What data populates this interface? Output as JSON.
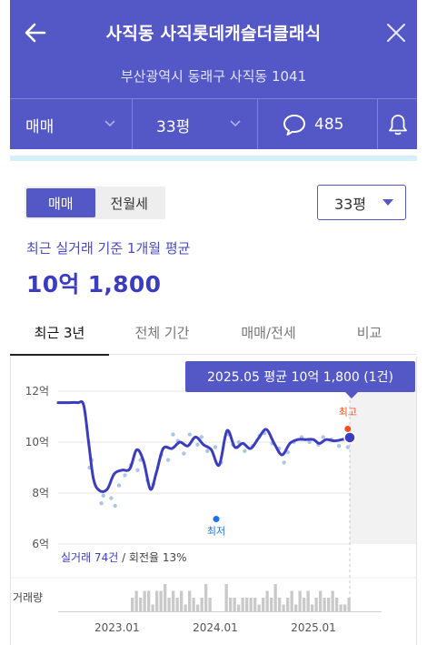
{
  "header": {
    "title": "사직동 사직롯데캐슬더클래식",
    "address": "부산광역시 동래구 사직동 1041",
    "trade_type": "매매",
    "size": "33평",
    "comment_count": "485",
    "colors": {
      "bg": "#5457c6",
      "stripe": "#d6f0fb"
    }
  },
  "filters": {
    "segments": [
      {
        "label": "매매",
        "active": true
      },
      {
        "label": "전월세",
        "active": false
      }
    ],
    "size_select": "33평"
  },
  "summary": {
    "label": "최근 실거래 기준 1개월 평균",
    "value": "10억 1,800"
  },
  "tabs": [
    {
      "label": "최근 3년",
      "active": true
    },
    {
      "label": "전체 기간",
      "active": false
    },
    {
      "label": "매매/전세",
      "active": false
    },
    {
      "label": "비교",
      "active": false
    }
  ],
  "chart_data": {
    "type": "line",
    "tooltip": "2025.05 평균 10억 1,800 (1건)",
    "ylim": [
      6,
      12
    ],
    "y_ticks": [
      "12억",
      "10억",
      "8억",
      "6억"
    ],
    "x_ticks": [
      "2023.01",
      "2024.01",
      "2025.01"
    ],
    "volume_label": "거래량",
    "markers": {
      "high": "최고",
      "low": "최저"
    },
    "footnote": {
      "count": "실거래 74건",
      "rest": " / 회전율 13%"
    },
    "series": [
      {
        "values": [
          [
            2022.4,
            11.55
          ],
          [
            2022.5,
            11.55
          ],
          [
            2022.6,
            11.55
          ],
          [
            2022.66,
            11.45
          ],
          [
            2022.71,
            10.0
          ],
          [
            2022.76,
            8.55
          ],
          [
            2022.82,
            8.1
          ],
          [
            2022.9,
            8.15
          ],
          [
            2022.97,
            8.75
          ],
          [
            2023.05,
            8.9
          ],
          [
            2023.13,
            8.95
          ],
          [
            2023.2,
            9.7
          ],
          [
            2023.27,
            9.25
          ],
          [
            2023.34,
            8.15
          ],
          [
            2023.4,
            8.8
          ],
          [
            2023.47,
            9.75
          ],
          [
            2023.56,
            9.75
          ],
          [
            2023.64,
            10.0
          ],
          [
            2023.72,
            9.85
          ],
          [
            2023.8,
            10.2
          ],
          [
            2023.88,
            9.9
          ],
          [
            2023.96,
            9.7
          ],
          [
            2024.04,
            9.1
          ],
          [
            2024.12,
            10.45
          ],
          [
            2024.2,
            9.8
          ],
          [
            2024.28,
            9.95
          ],
          [
            2024.36,
            9.75
          ],
          [
            2024.44,
            10.15
          ],
          [
            2024.52,
            10.5
          ],
          [
            2024.6,
            9.95
          ],
          [
            2024.68,
            9.5
          ],
          [
            2024.76,
            9.95
          ],
          [
            2024.84,
            10.1
          ],
          [
            2024.92,
            10.1
          ],
          [
            2025.0,
            10.1
          ],
          [
            2025.06,
            9.95
          ],
          [
            2025.13,
            10.1
          ],
          [
            2025.21,
            10.05
          ],
          [
            2025.29,
            10.1
          ],
          [
            2025.37,
            10.18
          ]
        ]
      }
    ],
    "scatter": [
      [
        2022.72,
        9.0
      ],
      [
        2022.74,
        9.3
      ],
      [
        2022.84,
        7.6
      ],
      [
        2022.86,
        7.9
      ],
      [
        2022.94,
        7.8
      ],
      [
        2022.98,
        7.5
      ],
      [
        2023.02,
        8.3
      ],
      [
        2023.08,
        8.7
      ],
      [
        2023.14,
        9.1
      ],
      [
        2023.21,
        8.9
      ],
      [
        2023.24,
        9.3
      ],
      [
        2023.31,
        8.5
      ],
      [
        2023.37,
        8.35
      ],
      [
        2023.45,
        9.5
      ],
      [
        2023.52,
        9.3
      ],
      [
        2023.57,
        10.3
      ],
      [
        2023.62,
        10.05
      ],
      [
        2023.68,
        9.55
      ],
      [
        2023.74,
        10.3
      ],
      [
        2023.82,
        9.9
      ],
      [
        2023.86,
        10.2
      ],
      [
        2023.92,
        9.65
      ],
      [
        2024.0,
        9.8
      ],
      [
        2024.06,
        9.2
      ],
      [
        2024.14,
        10.3
      ],
      [
        2024.18,
        9.9
      ],
      [
        2024.24,
        10.0
      ],
      [
        2024.3,
        9.65
      ],
      [
        2024.38,
        9.85
      ],
      [
        2024.45,
        10.25
      ],
      [
        2024.5,
        10.35
      ],
      [
        2024.58,
        9.95
      ],
      [
        2024.65,
        9.75
      ],
      [
        2024.7,
        9.2
      ],
      [
        2024.74,
        9.6
      ],
      [
        2024.8,
        10.0
      ],
      [
        2024.88,
        10.2
      ],
      [
        2024.96,
        10.0
      ],
      [
        2025.05,
        9.9
      ],
      [
        2025.1,
        10.2
      ],
      [
        2025.18,
        10.1
      ],
      [
        2025.26,
        9.85
      ],
      [
        2025.35,
        9.8
      ]
    ],
    "high_point": [
      2025.35,
      10.52
    ],
    "low_point": [
      2024.01,
      6.98
    ],
    "volume": [
      0,
      0,
      0,
      0,
      0,
      0,
      0,
      0,
      0,
      0,
      2,
      3,
      2,
      3,
      3,
      1,
      3,
      3,
      4,
      2,
      3,
      2,
      3,
      1,
      3,
      2,
      1,
      2,
      4,
      2,
      0,
      0,
      0,
      4,
      2,
      2,
      1,
      2,
      2,
      2,
      2,
      1,
      2,
      3,
      2,
      4,
      2,
      1,
      2,
      3,
      1,
      3,
      2,
      3,
      1,
      2,
      3,
      2,
      2,
      3,
      2,
      1,
      1,
      2
    ]
  }
}
